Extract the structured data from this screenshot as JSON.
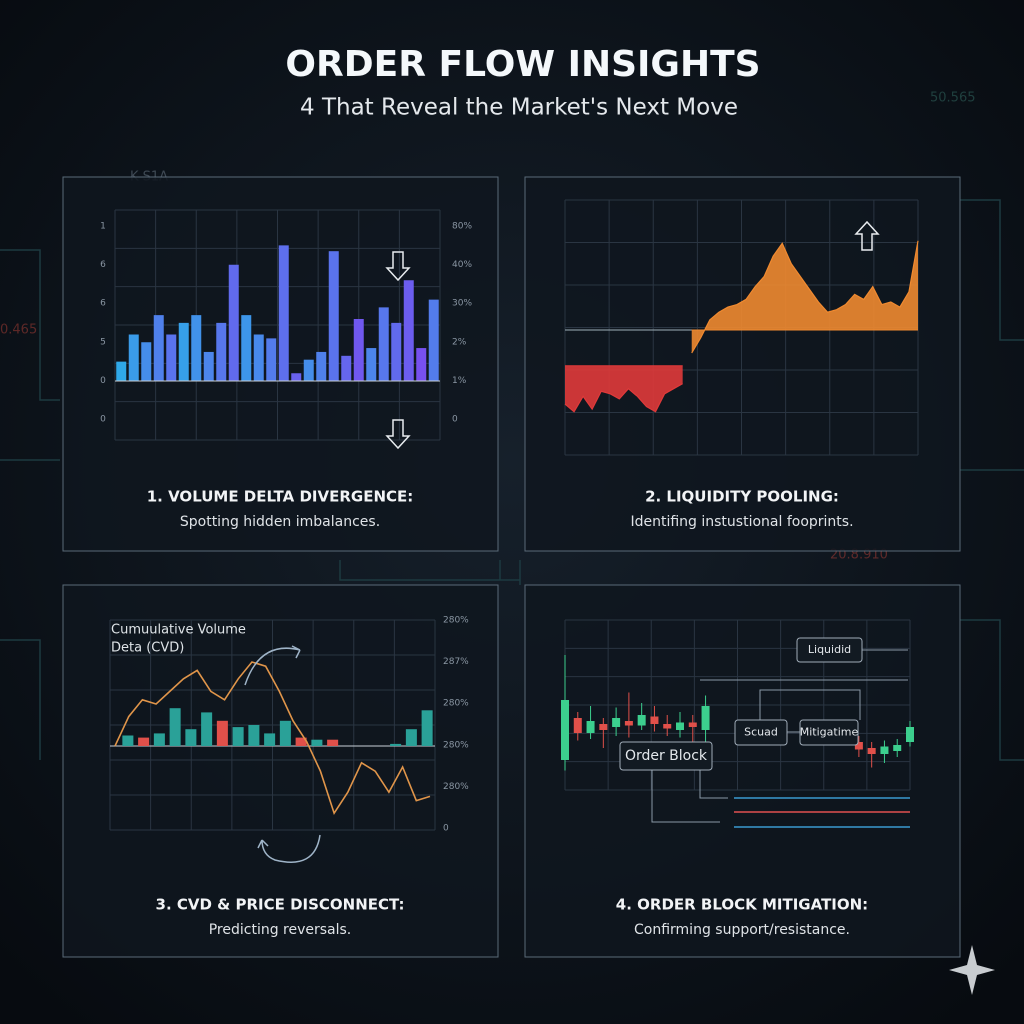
{
  "header": {
    "title": "ORDER FLOW INSIGHTS",
    "subtitle": "4 That Reveal the Market's Next Move"
  },
  "background_texts": [
    "0.465",
    "20.8.910",
    "K S1A",
    "50.565"
  ],
  "chart_data": [
    {
      "type": "bar",
      "title": "1. VOLUME DELTA DIVERGENCE:",
      "subtitle": "Spotting hidden imbalances.",
      "ylim": [
        0,
        4
      ],
      "left_labels": [
        "1",
        "6",
        "6",
        "5",
        "0",
        "0"
      ],
      "right_labels": [
        "80%",
        "40%",
        "30%",
        "2%",
        "1%",
        "0"
      ],
      "colors": [
        "#2fa8e8",
        "#7a4cf0"
      ],
      "values": [
        0.5,
        1.2,
        1.0,
        1.7,
        1.2,
        1.5,
        1.7,
        0.75,
        1.5,
        3.0,
        1.7,
        1.2,
        1.1,
        3.5,
        0.2,
        0.55,
        0.75,
        3.35,
        0.65,
        1.6,
        0.85,
        1.9,
        1.5,
        2.6,
        0.85,
        2.1
      ]
    },
    {
      "type": "area",
      "title": "2. LIQUIDITY POOLING:",
      "subtitle": "Identifing instustional fooprints.",
      "ylim": [
        0,
        10
      ],
      "reference": 4.9,
      "series": [
        {
          "color": "#e03a3a",
          "base": 3.5,
          "values": [
            2.0,
            1.7,
            2.3,
            1.8,
            2.5,
            2.4,
            2.2,
            2.6,
            2.3,
            1.9,
            1.7,
            2.4,
            2.6,
            2.8,
            null,
            null,
            null,
            null,
            null,
            null,
            null,
            null,
            null,
            null,
            null,
            null,
            null,
            null,
            null,
            null,
            null,
            null,
            null,
            null,
            null,
            null,
            null,
            null,
            null,
            null
          ]
        },
        {
          "color": "#f08a30",
          "base": 4.9,
          "values": [
            null,
            null,
            null,
            null,
            null,
            null,
            null,
            null,
            null,
            null,
            null,
            null,
            null,
            null,
            4.0,
            4.6,
            5.3,
            5.6,
            5.8,
            5.9,
            6.1,
            6.6,
            7.0,
            7.8,
            8.3,
            7.5,
            7.0,
            6.5,
            6.0,
            5.6,
            5.7,
            5.9,
            6.3,
            6.1,
            6.6,
            5.9,
            6.0,
            5.8,
            6.4,
            8.4
          ]
        }
      ]
    },
    {
      "type": "combo",
      "title": "3. CVD & PRICE DISCONNECT:",
      "subtitle": "Predicting reversals.",
      "ylim": [
        -2,
        3
      ],
      "annotation": [
        "Cumuulative Volume",
        "Deta (CVD)"
      ],
      "right_labels": [
        "280%",
        "287%",
        "280%",
        "280%",
        "280%",
        "0"
      ],
      "line_color": "#e0954a",
      "line": [
        0,
        0.7,
        1.1,
        1.0,
        1.3,
        1.6,
        1.8,
        1.3,
        1.1,
        1.6,
        2.0,
        1.9,
        1.3,
        0.6,
        0.1,
        -0.6,
        -1.6,
        -1.1,
        -0.4,
        -0.6,
        -1.1,
        -0.5,
        -1.3,
        -1.2
      ],
      "bars": [
        0.25,
        0.2,
        0.3,
        0.9,
        0.4,
        0.8,
        0.6,
        0.45,
        0.5,
        0.3,
        0.6,
        0.2,
        0.15,
        0.15,
        0,
        0,
        0,
        0.05,
        0.4,
        0.85
      ],
      "bar_colors": [
        "#2aa198",
        "#e0504a",
        "#2aa198",
        "#2aa198",
        "#2aa198",
        "#2aa198",
        "#e0504a",
        "#2aa198",
        "#2aa198",
        "#2aa198",
        "#2aa198",
        "#e0504a",
        "#2aa198",
        "#e0504a",
        "#2aa198",
        "#2aa198",
        "#2aa198",
        "#2aa198",
        "#2aa198",
        "#2aa198"
      ]
    },
    {
      "type": "candlestick",
      "title": "4. ORDER BLOCK MITIGATION:",
      "subtitle": "Confirming support/resistance.",
      "ylim": [
        0,
        10
      ],
      "annotations": [
        "Liquidid",
        "Scuad",
        "Mitigatime",
        "Order Block"
      ],
      "up_color": "#3ccf8e",
      "down_color": "#e0504a",
      "open": [
        2,
        4.8,
        3.8,
        4.4,
        4.2,
        4.6,
        4.3,
        4.9,
        4.4,
        4.0,
        4.5,
        4.0,
        null,
        null,
        null,
        null,
        null,
        null,
        null,
        null,
        null,
        null,
        null,
        3.2,
        2.8,
        2.4,
        2.6,
        3.2
      ],
      "high": [
        9,
        5.2,
        5.6,
        4.8,
        5.5,
        6.5,
        5.8,
        5.6,
        5.0,
        5.2,
        5.0,
        6.3,
        null,
        null,
        null,
        null,
        null,
        null,
        null,
        null,
        null,
        null,
        null,
        3.6,
        3.2,
        3.3,
        3.4,
        4.6
      ],
      "low": [
        1.3,
        3.3,
        3.4,
        2.8,
        3.6,
        3.5,
        4.0,
        3.9,
        3.6,
        3.5,
        3.2,
        3.0,
        null,
        null,
        null,
        null,
        null,
        null,
        null,
        null,
        null,
        null,
        null,
        2.2,
        1.5,
        1.8,
        2.2,
        2.9
      ],
      "close": [
        6,
        3.8,
        4.6,
        4.0,
        4.8,
        4.3,
        5.0,
        4.4,
        4.1,
        4.5,
        4.2,
        5.6,
        null,
        null,
        null,
        null,
        null,
        null,
        null,
        null,
        null,
        null,
        null,
        2.7,
        2.4,
        2.9,
        3.0,
        4.2
      ]
    }
  ]
}
